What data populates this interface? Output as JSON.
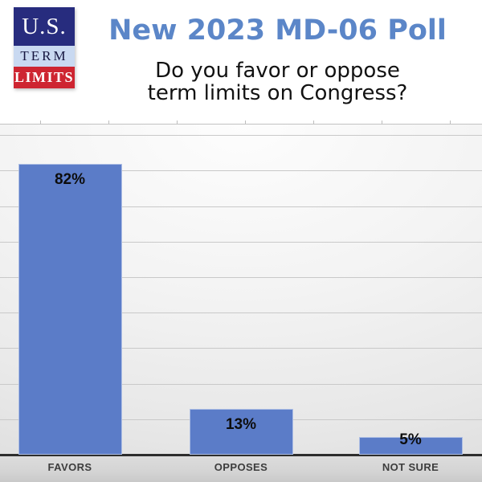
{
  "header": {
    "logo": {
      "line1": "U.S.",
      "line2": "TERM",
      "line3": "LIMITS"
    },
    "title": "New 2023 MD-06 Poll",
    "question_line1": "Do you favor or oppose",
    "question_line2": "term limits on Congress?"
  },
  "colors": {
    "title_blue": "#5b86c8",
    "bar_blue": "#5b7cc8",
    "logo_navy": "#272c7e",
    "logo_light_blue": "#c9d9f1",
    "logo_red": "#ce2531",
    "gridline": "#c9c9c9",
    "axis_line": "#2d2d2d",
    "data_label_text": "#0d0d0d",
    "category_text": "#3d3d3d"
  },
  "chart_data": {
    "type": "bar",
    "title": "New 2023 MD-06 Poll",
    "subtitle": "Do you favor or oppose term limits on Congress?",
    "categories": [
      "FAVORS",
      "OPPOSES",
      "NOT SURE"
    ],
    "values": [
      82,
      13,
      5
    ],
    "value_labels": [
      "82%",
      "13%",
      "5%"
    ],
    "xlabel": "",
    "ylabel": "",
    "ylim": [
      0,
      90
    ],
    "gridline_interval": 10,
    "grid": "horizontal",
    "legend": "none",
    "bar_color": "#5b7cc8",
    "data_label_position": "inside-end"
  }
}
